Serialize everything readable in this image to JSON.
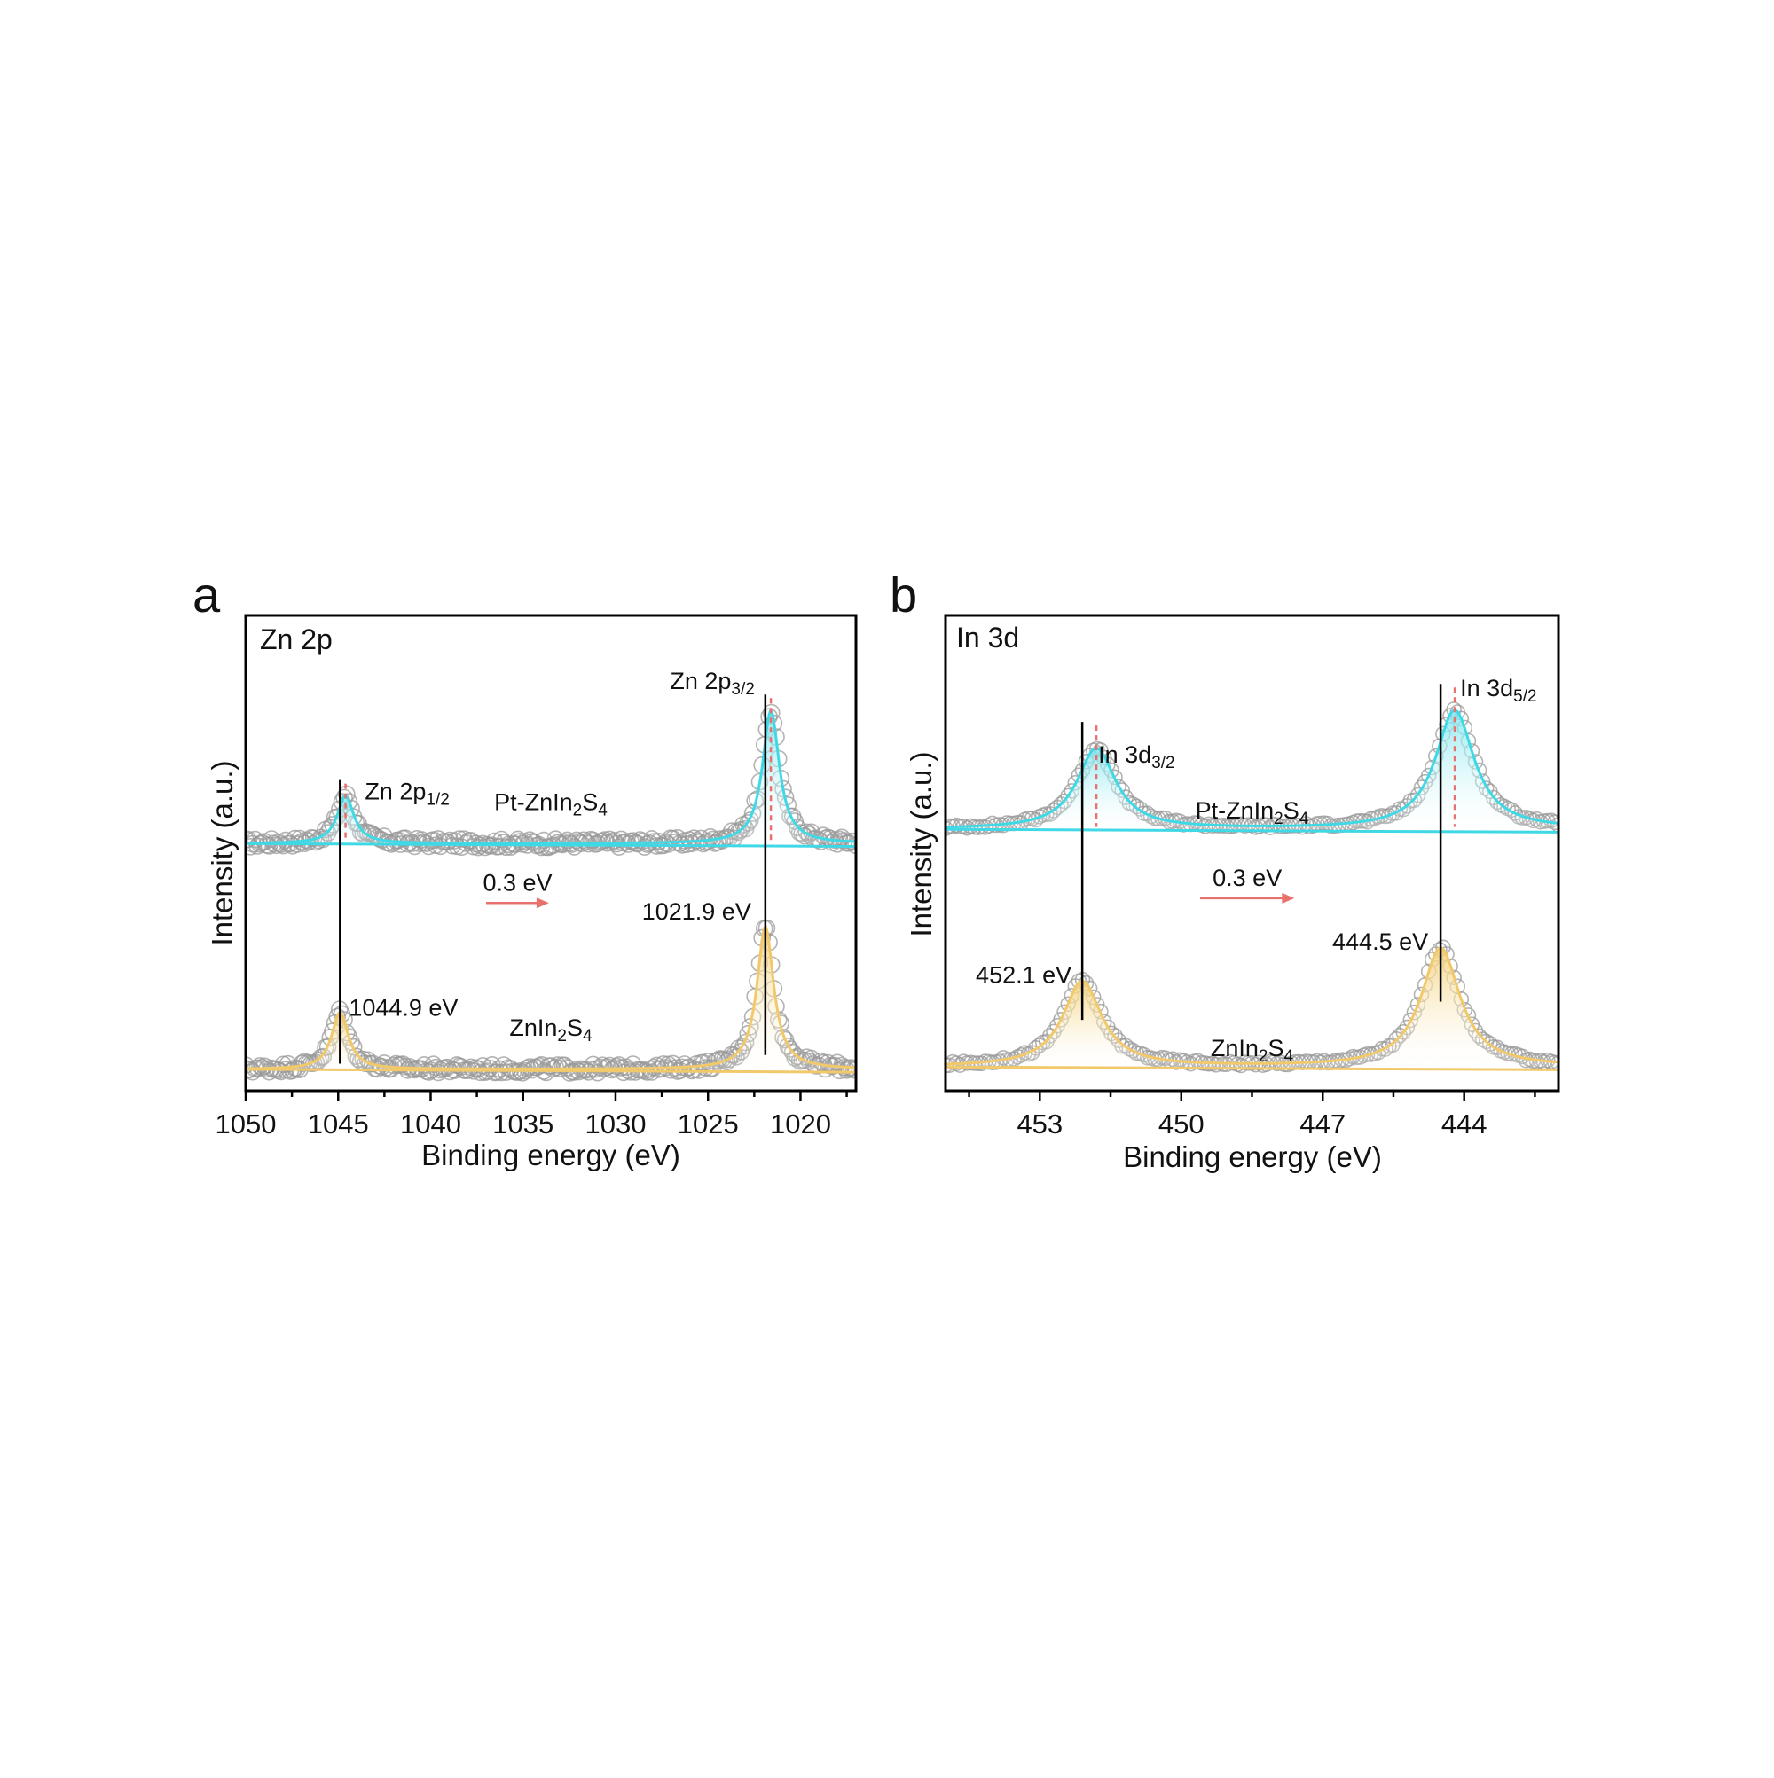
{
  "figure": {
    "colors": {
      "pt": "#3fd9e6",
      "pt_fill": "#8be9f1",
      "pure": "#f2c96a",
      "pure_fill": "#f7d98e",
      "raw": "#9a9a9a",
      "shift": "#e8716e",
      "marker": "#000000"
    }
  },
  "chart_data": [
    {
      "id": "a",
      "type": "line",
      "panel_label": "a",
      "title": "Zn 2p",
      "xlabel": "Binding energy (eV)",
      "ylabel": "Intensity (a.u.)",
      "xlim": [
        1050,
        1017
      ],
      "x_ticks": [
        1050,
        1045,
        1040,
        1035,
        1030,
        1025,
        1020
      ],
      "ylim": [
        0,
        1
      ],
      "series": [
        {
          "name": "Pt-ZnIn2S4",
          "label": "Pt-ZnIn",
          "label_sub": "2",
          "label_tail": "S",
          "label_sub2": "4",
          "color": "pt",
          "baseline": 0.52,
          "peaks": [
            {
              "center": 1044.6,
              "height": 0.1,
              "width": 0.55,
              "label": "Zn 2p",
              "label_sub": "1/2"
            },
            {
              "center": 1021.6,
              "height": 0.28,
              "width": 0.55,
              "label": "Zn 2p",
              "label_sub": "3/2"
            }
          ]
        },
        {
          "name": "ZnIn2S4",
          "label": "ZnIn",
          "label_sub": "2",
          "label_tail": "S",
          "label_sub2": "4",
          "color": "pure",
          "baseline": 0.045,
          "peaks": [
            {
              "center": 1044.9,
              "height": 0.12,
              "width": 0.55,
              "value_label": "1044.9 eV"
            },
            {
              "center": 1021.9,
              "height": 0.3,
              "width": 0.55,
              "value_label": "1021.9 eV"
            }
          ]
        }
      ],
      "shift_annotation": {
        "text": "0.3 eV",
        "from": 1037.0,
        "to": 1033.6,
        "level": 0.395
      }
    },
    {
      "id": "b",
      "type": "line",
      "panel_label": "b",
      "title": "In 3d",
      "xlabel": "Binding energy (eV)",
      "ylabel": "Intensity (a.u.)",
      "xlim": [
        455,
        442
      ],
      "x_ticks": [
        453,
        450,
        447,
        444
      ],
      "ylim": [
        0,
        1
      ],
      "series": [
        {
          "name": "Pt-ZnIn2S4",
          "label": "Pt-ZnIn",
          "label_sub": "2",
          "label_tail": "S",
          "label_sub2": "4",
          "color": "pt",
          "baseline": 0.55,
          "peaks": [
            {
              "center": 451.8,
              "height": 0.17,
              "width": 0.5,
              "label": "In 3d",
              "label_sub": "3/2"
            },
            {
              "center": 444.2,
              "height": 0.25,
              "width": 0.5,
              "label": "In 3d",
              "label_sub": "5/2"
            }
          ]
        },
        {
          "name": "ZnIn2S4",
          "label": "ZnIn",
          "label_sub": "2",
          "label_tail": "S",
          "label_sub2": "4",
          "color": "pure",
          "baseline": 0.05,
          "peaks": [
            {
              "center": 452.1,
              "height": 0.18,
              "width": 0.5,
              "value_label": "452.1 eV"
            },
            {
              "center": 444.5,
              "height": 0.25,
              "width": 0.5,
              "value_label": "444.5 eV"
            }
          ]
        }
      ],
      "shift_annotation": {
        "text": "0.3 eV",
        "from": 449.6,
        "to": 447.6,
        "level": 0.405
      }
    }
  ]
}
